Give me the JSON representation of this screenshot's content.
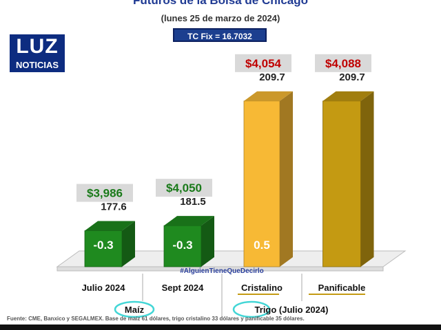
{
  "title": "Futuros de la Bolsa de Chicago",
  "subtitle": "(lunes 25 de marzo de 2024)",
  "tc_fix": "TC Fix = 16.7032",
  "logo": {
    "line1": "LUZ",
    "line2": "NOTICIAS"
  },
  "watermark": "#AlguienTieneQueDecirlo",
  "footer": "Fuente: CME, Banxico y SEGALMEX. Base de maíz 61 dólares, trigo cristalino 33 dólares y panificable 35 dólares.",
  "colors": {
    "green": "#1f8a1f",
    "gold_light": "#f7b935",
    "gold_dark": "#c49a12",
    "price_green": "#1a7a1a",
    "price_red": "#c00000"
  },
  "chart_data": {
    "type": "bar",
    "title": "Futuros de la Bolsa de Chicago",
    "categories": [
      "Julio 2024",
      "Sept 2024",
      "Cristalino",
      "Panificable"
    ],
    "groups": [
      {
        "label": "Maíz",
        "categories": [
          "Julio 2024",
          "Sept 2024"
        ]
      },
      {
        "label": "Trigo (Julio 2024)",
        "categories": [
          "Cristalino",
          "Panificable"
        ]
      }
    ],
    "values": [
      177.6,
      181.5,
      209.7,
      209.7
    ],
    "value_labels": [
      "177.6",
      "181.5",
      "209.7",
      "209.7"
    ],
    "prices": [
      "$3,986",
      "$4,050",
      "$4,054",
      "$4,088"
    ],
    "changes": [
      "-0.3",
      "-0.3",
      "0.5",
      ""
    ],
    "bar_colors": [
      "#1f8a1f",
      "#1f8a1f",
      "#f7b935",
      "#c49a12"
    ]
  }
}
